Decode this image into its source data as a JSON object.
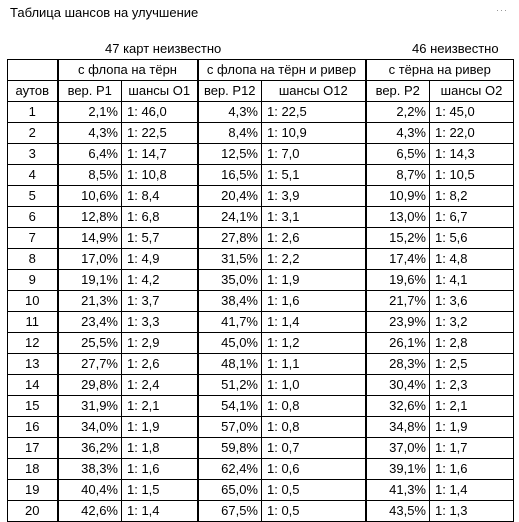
{
  "title": "Таблица шансов на улучшение",
  "notes": {
    "left": "47 карт неизвестно",
    "right": "46 неизвестно"
  },
  "table": {
    "group_headers": [
      "с флопа на тёрн",
      "с флопа на тёрн и ривер",
      "с тёрна на ривер"
    ],
    "column_headers": [
      "аутов",
      "вер. Р1",
      "шансы О1",
      "вер. Р12",
      "шансы О12",
      "вер. Р2",
      "шансы О2"
    ],
    "rows": [
      [
        "1",
        "2,1%",
        "1: 46,0",
        "4,3%",
        "1: 22,5",
        "2,2%",
        "1: 45,0"
      ],
      [
        "2",
        "4,3%",
        "1: 22,5",
        "8,4%",
        "1: 10,9",
        "4,3%",
        "1: 22,0"
      ],
      [
        "3",
        "6,4%",
        "1: 14,7",
        "12,5%",
        "1: 7,0",
        "6,5%",
        "1: 14,3"
      ],
      [
        "4",
        "8,5%",
        "1: 10,8",
        "16,5%",
        "1: 5,1",
        "8,7%",
        "1: 10,5"
      ],
      [
        "5",
        "10,6%",
        "1: 8,4",
        "20,4%",
        "1: 3,9",
        "10,9%",
        "1: 8,2"
      ],
      [
        "6",
        "12,8%",
        "1: 6,8",
        "24,1%",
        "1: 3,1",
        "13,0%",
        "1: 6,7"
      ],
      [
        "7",
        "14,9%",
        "1: 5,7",
        "27,8%",
        "1: 2,6",
        "15,2%",
        "1: 5,6"
      ],
      [
        "8",
        "17,0%",
        "1: 4,9",
        "31,5%",
        "1: 2,2",
        "17,4%",
        "1: 4,8"
      ],
      [
        "9",
        "19,1%",
        "1: 4,2",
        "35,0%",
        "1: 1,9",
        "19,6%",
        "1: 4,1"
      ],
      [
        "10",
        "21,3%",
        "1: 3,7",
        "38,4%",
        "1: 1,6",
        "21,7%",
        "1: 3,6"
      ],
      [
        "11",
        "23,4%",
        "1: 3,3",
        "41,7%",
        "1: 1,4",
        "23,9%",
        "1: 3,2"
      ],
      [
        "12",
        "25,5%",
        "1: 2,9",
        "45,0%",
        "1: 1,2",
        "26,1%",
        "1: 2,8"
      ],
      [
        "13",
        "27,7%",
        "1: 2,6",
        "48,1%",
        "1: 1,1",
        "28,3%",
        "1: 2,5"
      ],
      [
        "14",
        "29,8%",
        "1: 2,4",
        "51,2%",
        "1: 1,0",
        "30,4%",
        "1: 2,3"
      ],
      [
        "15",
        "31,9%",
        "1: 2,1",
        "54,1%",
        "1: 0,8",
        "32,6%",
        "1: 2,1"
      ],
      [
        "16",
        "34,0%",
        "1: 1,9",
        "57,0%",
        "1: 0,8",
        "34,8%",
        "1: 1,9"
      ],
      [
        "17",
        "36,2%",
        "1: 1,8",
        "59,8%",
        "1: 0,7",
        "37,0%",
        "1: 1,7"
      ],
      [
        "18",
        "38,3%",
        "1: 1,6",
        "62,4%",
        "1: 0,6",
        "39,1%",
        "1: 1,6"
      ],
      [
        "19",
        "40,4%",
        "1: 1,5",
        "65,0%",
        "1: 0,5",
        "41,3%",
        "1: 1,4"
      ],
      [
        "20",
        "42,6%",
        "1: 1,4",
        "67,5%",
        "1: 0,5",
        "43,5%",
        "1: 1,3"
      ]
    ]
  }
}
